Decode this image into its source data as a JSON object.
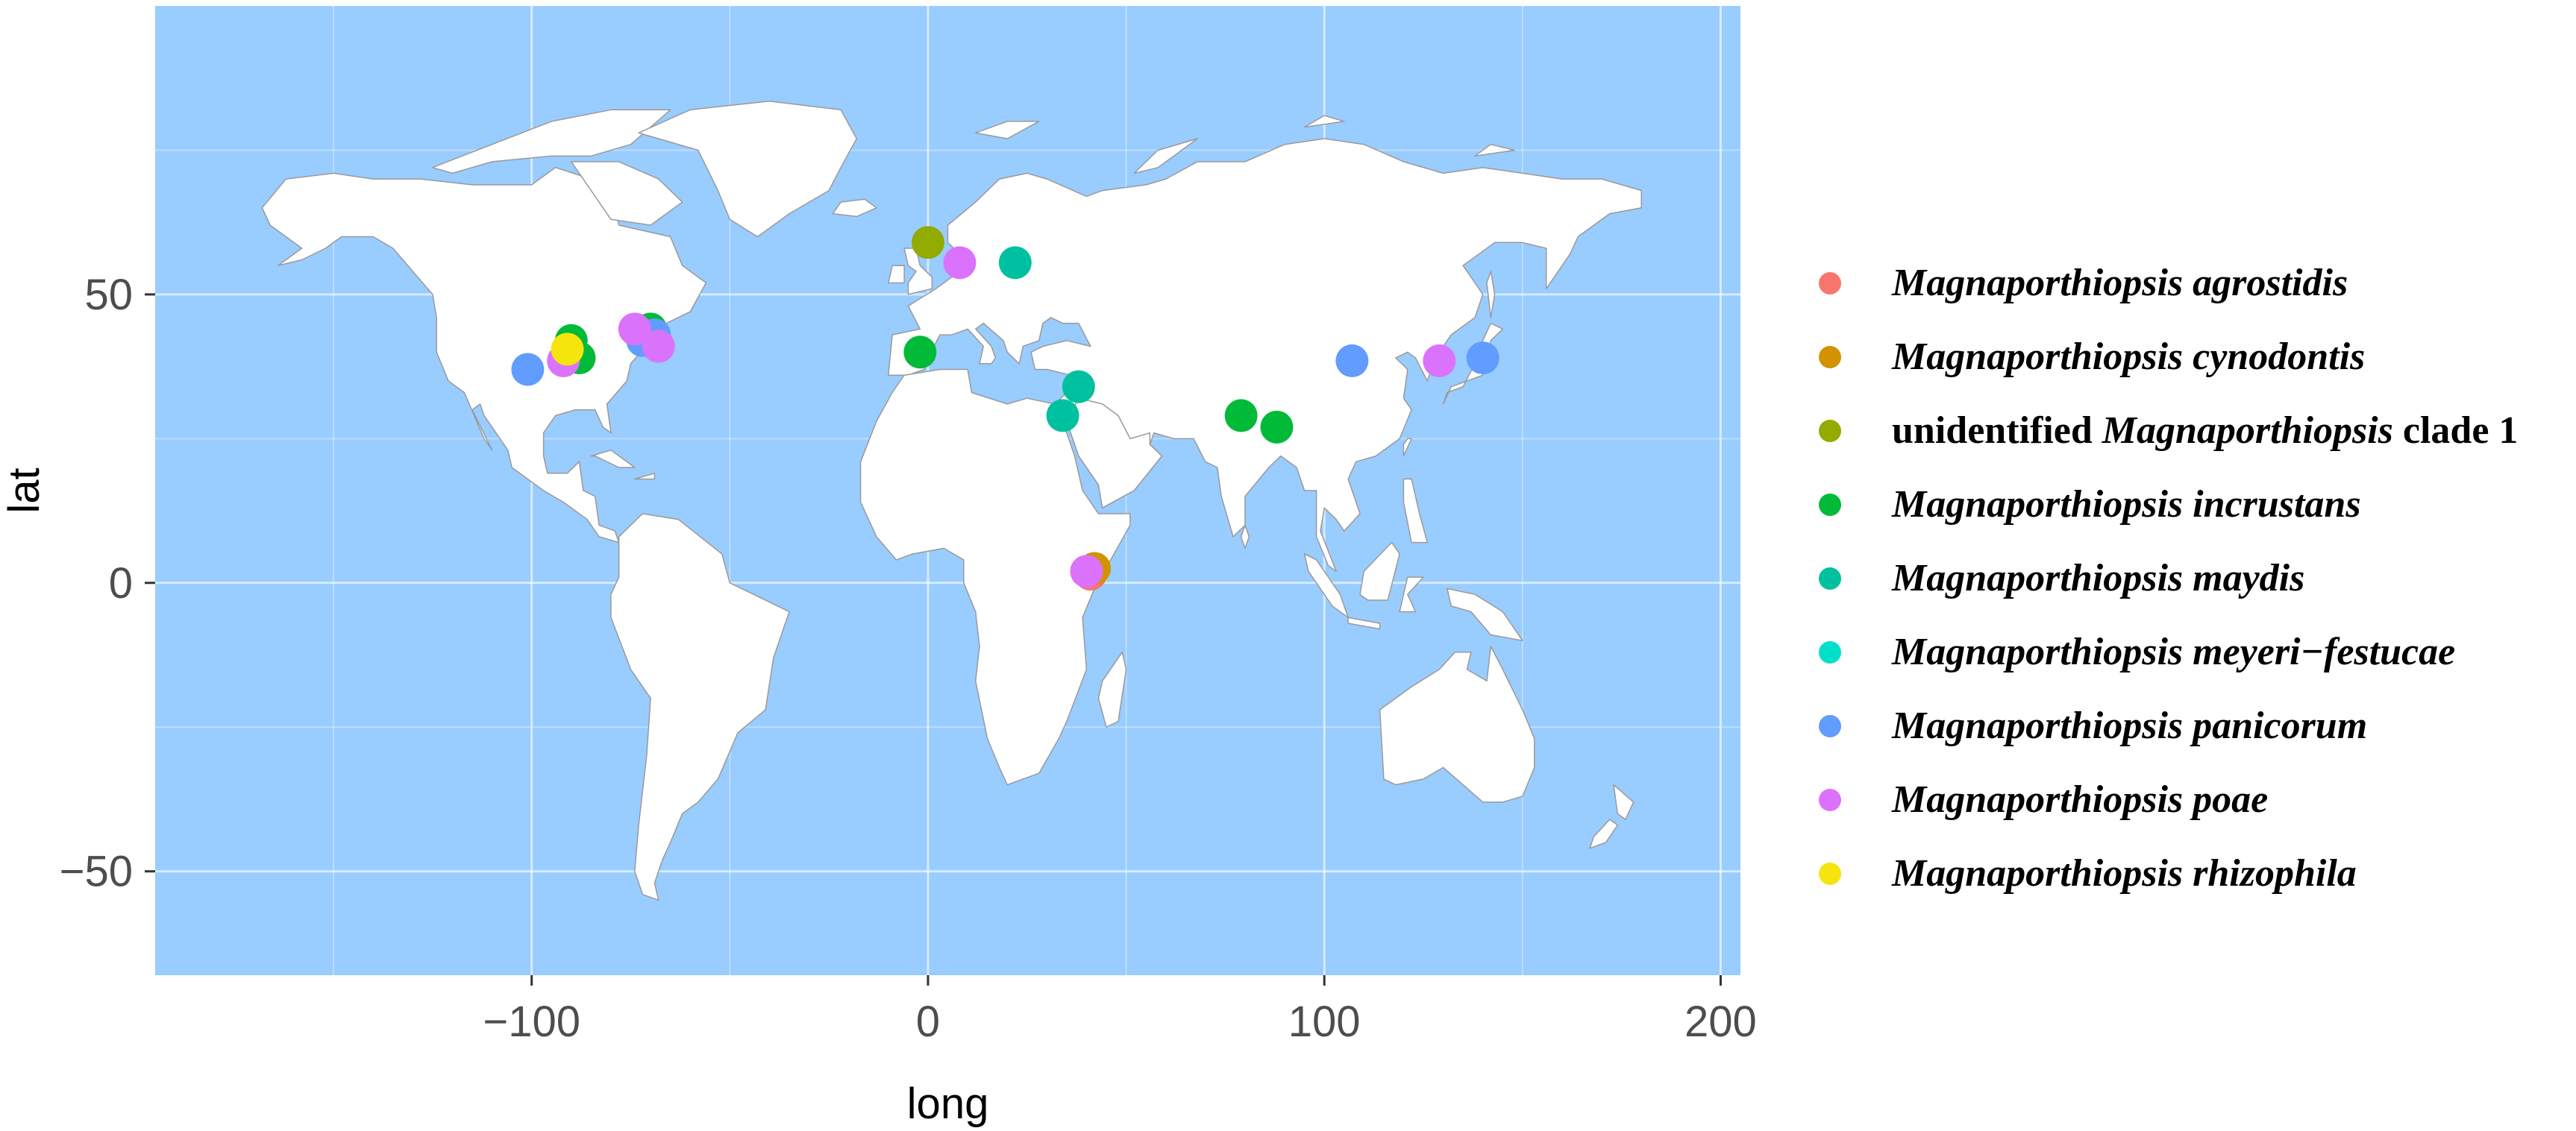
{
  "chart_data": {
    "type": "scatter",
    "xlabel": "long",
    "ylabel": "lat",
    "xlim": [
      -195,
      205
    ],
    "ylim": [
      -68,
      100
    ],
    "x_ticks": [
      -100,
      0,
      100,
      200
    ],
    "x_tick_labels": [
      "−100",
      "0",
      "100",
      "200"
    ],
    "y_ticks": [
      -50,
      0,
      50
    ],
    "y_tick_labels": [
      "−50",
      "0",
      "50"
    ],
    "grid": true,
    "background_color": "#99CCFF",
    "land_color": "#FFFFFF",
    "legend_position": "right",
    "series": [
      {
        "name": "Magnaporthiopsis agrostidis",
        "label_parts": [
          {
            "text": "Magnaporthiopsis agrostidis",
            "italic": true
          }
        ],
        "color": "#F8766D",
        "points": [
          [
            41,
            1.5
          ]
        ]
      },
      {
        "name": "Magnaporthiopsis cynodontis",
        "label_parts": [
          {
            "text": "Magnaporthiopsis cynodontis",
            "italic": true
          }
        ],
        "color": "#D39200",
        "points": [
          [
            42,
            2.5
          ]
        ]
      },
      {
        "name": "unidentified Magnaporthiopsis clade 1",
        "label_parts": [
          {
            "text": "unidentified ",
            "italic": false
          },
          {
            "text": "Magnaporthiopsis",
            "italic": true
          },
          {
            "text": " clade 1",
            "italic": false
          }
        ],
        "color": "#93AA00",
        "points": [
          [
            0,
            59
          ]
        ]
      },
      {
        "name": "Magnaporthiopsis incrustans",
        "label_parts": [
          {
            "text": "Magnaporthiopsis incrustans",
            "italic": true
          }
        ],
        "color": "#00BA38",
        "points": [
          [
            -2,
            40
          ],
          [
            79,
            29
          ],
          [
            88,
            27
          ],
          [
            -90,
            42
          ],
          [
            -88,
            39
          ],
          [
            -70,
            44
          ]
        ]
      },
      {
        "name": "Magnaporthiopsis maydis",
        "label_parts": [
          {
            "text": "Magnaporthiopsis maydis",
            "italic": true
          }
        ],
        "color": "#00C19F",
        "points": [
          [
            22,
            55.5
          ],
          [
            38,
            34
          ],
          [
            34,
            29
          ]
        ]
      },
      {
        "name": "Magnaporthiopsis meyeri−festucae",
        "label_parts": [
          {
            "text": "Magnaporthiopsis meyeri−festucae",
            "italic": true
          }
        ],
        "color": "#00E0C8",
        "points": []
      },
      {
        "name": "Magnaporthiopsis panicorum",
        "label_parts": [
          {
            "text": "Magnaporthiopsis panicorum",
            "italic": true
          }
        ],
        "color": "#619CFF",
        "points": [
          [
            -101,
            37
          ],
          [
            107,
            38.5
          ],
          [
            140,
            39
          ],
          [
            -72,
            42
          ],
          [
            -69,
            43
          ]
        ]
      },
      {
        "name": "Magnaporthiopsis poae",
        "label_parts": [
          {
            "text": "Magnaporthiopsis poae",
            "italic": true
          }
        ],
        "color": "#DB72FB",
        "points": [
          [
            8,
            55.5
          ],
          [
            129,
            38.5
          ],
          [
            -74,
            44
          ],
          [
            -92,
            38.5
          ],
          [
            -68,
            41
          ],
          [
            40,
            2
          ]
        ]
      },
      {
        "name": "Magnaporthiopsis rhizophila",
        "label_parts": [
          {
            "text": "Magnaporthiopsis rhizophila",
            "italic": true
          }
        ],
        "color": "#F5E50C",
        "points": [
          [
            -91,
            40.5
          ]
        ]
      }
    ]
  }
}
